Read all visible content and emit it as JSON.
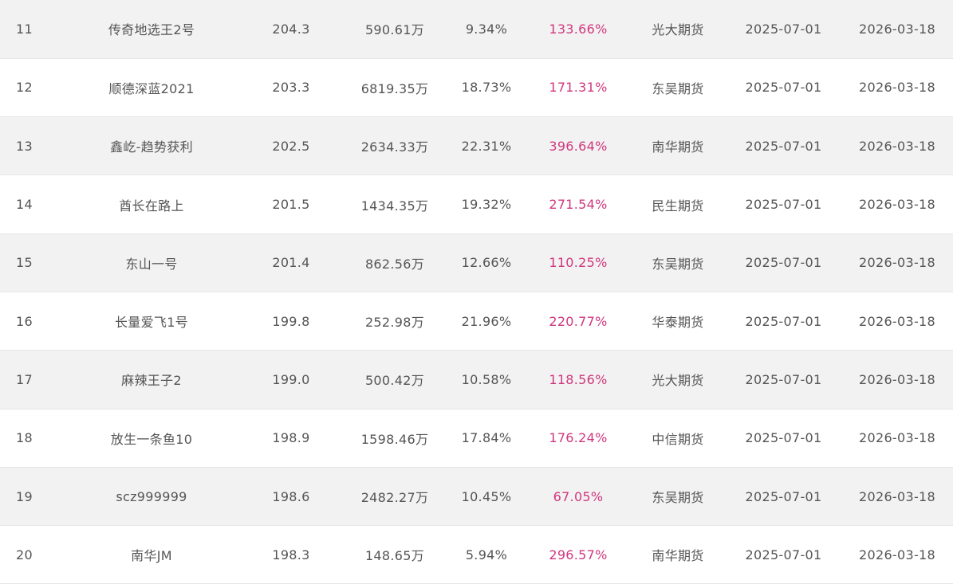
{
  "colors": {
    "return_text": "#d0377e",
    "text": "#555555",
    "row_alt": "#f2f2f2"
  },
  "rows": [
    {
      "rank": "11",
      "name": "传奇地选王2号",
      "score": "204.3",
      "equity": "590.61万",
      "drawdown": "9.34%",
      "return": "133.66%",
      "broker": "光大期货",
      "start": "2025-07-01",
      "end": "2026-03-18"
    },
    {
      "rank": "12",
      "name": "顺德深蓝2021",
      "score": "203.3",
      "equity": "6819.35万",
      "drawdown": "18.73%",
      "return": "171.31%",
      "broker": "东吴期货",
      "start": "2025-07-01",
      "end": "2026-03-18"
    },
    {
      "rank": "13",
      "name": "鑫屹-趋势获利",
      "score": "202.5",
      "equity": "2634.33万",
      "drawdown": "22.31%",
      "return": "396.64%",
      "broker": "南华期货",
      "start": "2025-07-01",
      "end": "2026-03-18"
    },
    {
      "rank": "14",
      "name": "酋长在路上",
      "score": "201.5",
      "equity": "1434.35万",
      "drawdown": "19.32%",
      "return": "271.54%",
      "broker": "民生期货",
      "start": "2025-07-01",
      "end": "2026-03-18"
    },
    {
      "rank": "15",
      "name": "东山一号",
      "score": "201.4",
      "equity": "862.56万",
      "drawdown": "12.66%",
      "return": "110.25%",
      "broker": "东吴期货",
      "start": "2025-07-01",
      "end": "2026-03-18"
    },
    {
      "rank": "16",
      "name": "长量爱飞1号",
      "score": "199.8",
      "equity": "252.98万",
      "drawdown": "21.96%",
      "return": "220.77%",
      "broker": "华泰期货",
      "start": "2025-07-01",
      "end": "2026-03-18"
    },
    {
      "rank": "17",
      "name": "麻辣王子2",
      "score": "199.0",
      "equity": "500.42万",
      "drawdown": "10.58%",
      "return": "118.56%",
      "broker": "光大期货",
      "start": "2025-07-01",
      "end": "2026-03-18"
    },
    {
      "rank": "18",
      "name": "放生一条鱼10",
      "score": "198.9",
      "equity": "1598.46万",
      "drawdown": "17.84%",
      "return": "176.24%",
      "broker": "中信期货",
      "start": "2025-07-01",
      "end": "2026-03-18"
    },
    {
      "rank": "19",
      "name": "scz999999",
      "score": "198.6",
      "equity": "2482.27万",
      "drawdown": "10.45%",
      "return": "67.05%",
      "broker": "东吴期货",
      "start": "2025-07-01",
      "end": "2026-03-18"
    },
    {
      "rank": "20",
      "name": "南华JM",
      "score": "198.3",
      "equity": "148.65万",
      "drawdown": "5.94%",
      "return": "296.57%",
      "broker": "南华期货",
      "start": "2025-07-01",
      "end": "2026-03-18"
    }
  ]
}
